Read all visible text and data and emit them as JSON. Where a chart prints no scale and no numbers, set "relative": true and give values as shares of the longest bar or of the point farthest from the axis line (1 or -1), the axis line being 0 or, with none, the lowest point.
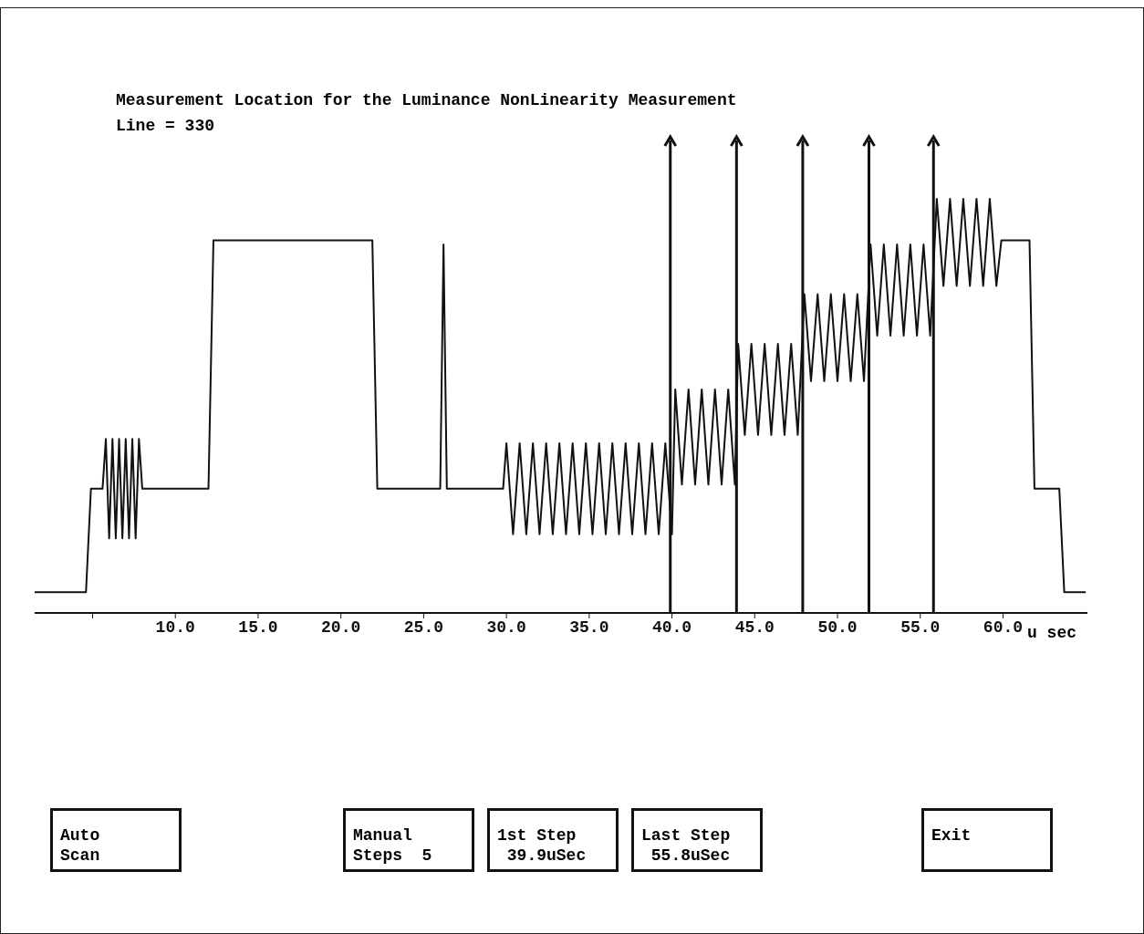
{
  "chart_data": {
    "type": "line",
    "title": "Measurement Location for the Luminance NonLinearity Measurement",
    "subtitle": "Line = 330",
    "xlabel": "u sec",
    "relative": true,
    "color": "#111111",
    "marker": "none",
    "line_style": "solid",
    "xlim": [
      1.5,
      65.1
    ],
    "xticks": [
      {
        "value": 5,
        "label": null
      },
      {
        "value": 10,
        "label": "10.0"
      },
      {
        "value": 15,
        "label": "15.0"
      },
      {
        "value": 20,
        "label": "20.0"
      },
      {
        "value": 25,
        "label": "25.0"
      },
      {
        "value": 30,
        "label": "30.0"
      },
      {
        "value": 35,
        "label": "35.0"
      },
      {
        "value": 40,
        "label": "40.0"
      },
      {
        "value": 45,
        "label": "45.0"
      },
      {
        "value": 50,
        "label": "50.0"
      },
      {
        "value": 55,
        "label": "55.0"
      },
      {
        "value": 60,
        "label": "60.0"
      }
    ],
    "x": [
      1.5,
      4.6,
      4.9,
      5.6,
      5.8,
      6.0,
      6.2,
      6.4,
      6.6,
      6.8,
      7.0,
      7.2,
      7.4,
      7.6,
      7.8,
      8.0,
      12.0,
      12.3,
      21.9,
      22.2,
      26.0,
      26.2,
      26.4,
      29.8,
      30.0,
      30.4,
      30.8,
      31.2,
      31.6,
      32.0,
      32.4,
      32.8,
      33.2,
      33.6,
      34.0,
      34.4,
      34.8,
      35.2,
      35.6,
      36.0,
      36.4,
      36.8,
      37.2,
      37.6,
      38.0,
      38.4,
      38.8,
      39.2,
      39.6,
      40.0,
      40.2,
      40.6,
      41.0,
      41.4,
      41.8,
      42.2,
      42.6,
      43.0,
      43.4,
      43.8,
      44.0,
      44.4,
      44.8,
      45.2,
      45.6,
      46.0,
      46.4,
      46.8,
      47.2,
      47.6,
      48.0,
      48.4,
      48.8,
      49.2,
      49.6,
      50.0,
      50.4,
      50.8,
      51.2,
      51.6,
      52.0,
      52.4,
      52.8,
      53.2,
      53.6,
      54.0,
      54.4,
      54.8,
      55.2,
      55.6,
      56.0,
      56.4,
      56.8,
      57.2,
      57.6,
      58.0,
      58.4,
      58.8,
      59.2,
      59.6,
      59.9,
      61.6,
      61.9,
      63.4,
      63.7,
      65.0
    ],
    "values": [
      0.05,
      0.05,
      0.3,
      0.3,
      0.42,
      0.18,
      0.42,
      0.18,
      0.42,
      0.18,
      0.42,
      0.18,
      0.42,
      0.18,
      0.42,
      0.3,
      0.3,
      0.9,
      0.9,
      0.3,
      0.3,
      0.89,
      0.3,
      0.3,
      0.41,
      0.19,
      0.41,
      0.19,
      0.41,
      0.19,
      0.41,
      0.19,
      0.41,
      0.19,
      0.41,
      0.19,
      0.41,
      0.19,
      0.41,
      0.19,
      0.41,
      0.19,
      0.41,
      0.19,
      0.41,
      0.19,
      0.41,
      0.19,
      0.41,
      0.19,
      0.54,
      0.31,
      0.54,
      0.31,
      0.54,
      0.31,
      0.54,
      0.31,
      0.54,
      0.31,
      0.65,
      0.43,
      0.65,
      0.43,
      0.65,
      0.43,
      0.65,
      0.43,
      0.65,
      0.43,
      0.77,
      0.56,
      0.77,
      0.56,
      0.77,
      0.56,
      0.77,
      0.56,
      0.77,
      0.56,
      0.89,
      0.67,
      0.89,
      0.67,
      0.89,
      0.67,
      0.89,
      0.67,
      0.89,
      0.67,
      1.0,
      0.79,
      1.0,
      0.79,
      1.0,
      0.79,
      1.0,
      0.79,
      1.0,
      0.79,
      0.9,
      0.9,
      0.3,
      0.3,
      0.05,
      0.05
    ],
    "ref_lines": [
      {
        "axis": "x",
        "value": 39.9,
        "label": null
      },
      {
        "axis": "x",
        "value": 43.9,
        "label": null
      },
      {
        "axis": "x",
        "value": 47.9,
        "label": null
      },
      {
        "axis": "x",
        "value": 51.9,
        "label": null
      },
      {
        "axis": "x",
        "value": 55.8,
        "label": null
      }
    ],
    "annotations": [
      "Auto\nScan",
      "Manual\nSteps  5",
      "1st Step\n 39.9uSec",
      "Last Step\n 55.8uSec",
      "Exit"
    ]
  }
}
